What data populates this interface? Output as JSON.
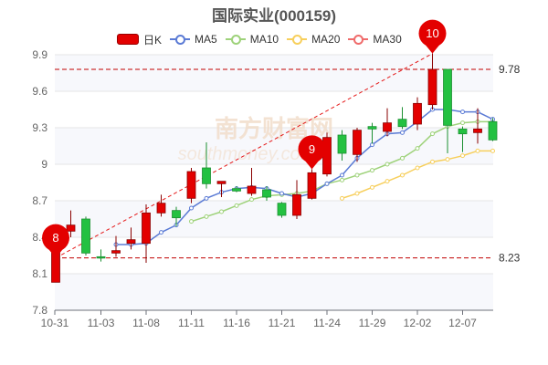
{
  "chart_data": {
    "type": "candlestick",
    "title": "国际实业(000159)",
    "legend": [
      "日K",
      "MA5",
      "MA10",
      "MA20",
      "MA30"
    ],
    "legend_position": "top",
    "colors": {
      "up": "#e30000",
      "down": "#23c141",
      "ma5": "#5b7bd5",
      "ma10": "#9ed27a",
      "ma20": "#f7cf5c",
      "ma30": "#ef6b6b",
      "grid": "#e6e6e6"
    },
    "y_range": [
      7.8,
      9.9
    ],
    "y_ticks": [
      "7.8",
      "8.1",
      "8.4",
      "8.7",
      "9",
      "9.3",
      "9.6",
      "9.9"
    ],
    "x_ticks": [
      "10-31",
      "11-03",
      "11-08",
      "11-11",
      "11-16",
      "11-21",
      "11-24",
      "11-29",
      "12-02",
      "12-07"
    ],
    "candles": [
      {
        "date": "10-31",
        "open": 8.03,
        "close": 8.39,
        "low": 8.03,
        "high": 8.42
      },
      {
        "date": "11-01",
        "open": 8.45,
        "close": 8.5,
        "low": 8.4,
        "high": 8.62
      },
      {
        "date": "11-02",
        "open": 8.55,
        "close": 8.27,
        "low": 8.25,
        "high": 8.57
      },
      {
        "date": "11-03",
        "open": 8.24,
        "close": 8.23,
        "low": 8.2,
        "high": 8.3
      },
      {
        "date": "11-04",
        "open": 8.27,
        "close": 8.29,
        "low": 8.24,
        "high": 8.41
      },
      {
        "date": "11-07",
        "open": 8.35,
        "close": 8.38,
        "low": 8.3,
        "high": 8.48
      },
      {
        "date": "11-08",
        "open": 8.35,
        "close": 8.6,
        "low": 8.19,
        "high": 8.67
      },
      {
        "date": "11-09",
        "open": 8.6,
        "close": 8.68,
        "low": 8.57,
        "high": 8.75
      },
      {
        "date": "11-10",
        "open": 8.62,
        "close": 8.56,
        "low": 8.49,
        "high": 8.65
      },
      {
        "date": "11-11",
        "open": 8.72,
        "close": 8.94,
        "low": 8.68,
        "high": 8.97
      },
      {
        "date": "11-14",
        "open": 8.97,
        "close": 8.84,
        "low": 8.8,
        "high": 9.18
      },
      {
        "date": "11-15",
        "open": 8.84,
        "close": 8.86,
        "low": 8.73,
        "high": 8.86
      },
      {
        "date": "11-16",
        "open": 8.8,
        "close": 8.78,
        "low": 8.77,
        "high": 8.82
      },
      {
        "date": "11-17",
        "open": 8.76,
        "close": 8.82,
        "low": 8.74,
        "high": 8.97
      },
      {
        "date": "11-18",
        "open": 8.79,
        "close": 8.73,
        "low": 8.7,
        "high": 8.82
      },
      {
        "date": "11-21",
        "open": 8.68,
        "close": 8.58,
        "low": 8.56,
        "high": 8.69
      },
      {
        "date": "11-22",
        "open": 8.58,
        "close": 8.75,
        "low": 8.55,
        "high": 8.87
      },
      {
        "date": "11-23",
        "open": 8.72,
        "close": 8.93,
        "low": 8.71,
        "high": 8.96
      },
      {
        "date": "11-24",
        "open": 8.92,
        "close": 9.22,
        "low": 8.9,
        "high": 9.26
      },
      {
        "date": "11-25",
        "open": 9.24,
        "close": 9.09,
        "low": 9.03,
        "high": 9.28
      },
      {
        "date": "11-28",
        "open": 9.08,
        "close": 9.28,
        "low": 9.02,
        "high": 9.3
      },
      {
        "date": "11-29",
        "open": 9.31,
        "close": 9.29,
        "low": 9.17,
        "high": 9.34
      },
      {
        "date": "11-30",
        "open": 9.27,
        "close": 9.34,
        "low": 9.23,
        "high": 9.46
      },
      {
        "date": "12-01",
        "open": 9.37,
        "close": 9.31,
        "low": 9.29,
        "high": 9.47
      },
      {
        "date": "12-02",
        "open": 9.33,
        "close": 9.5,
        "low": 9.28,
        "high": 9.55
      },
      {
        "date": "12-05",
        "open": 9.49,
        "close": 9.78,
        "low": 9.45,
        "high": 9.91
      },
      {
        "date": "12-06",
        "open": 9.78,
        "close": 9.32,
        "low": 9.09,
        "high": 9.78
      },
      {
        "date": "12-07",
        "open": 9.29,
        "close": 9.25,
        "low": 9.1,
        "high": 9.31
      },
      {
        "date": "12-08",
        "open": 9.26,
        "close": 9.29,
        "low": 9.17,
        "high": 9.46
      },
      {
        "date": "12-09",
        "open": 9.35,
        "close": 9.2,
        "low": 9.19,
        "high": 9.38
      }
    ],
    "ma5": [
      null,
      null,
      null,
      null,
      8.34,
      8.34,
      8.35,
      8.44,
      8.5,
      8.64,
      8.72,
      8.77,
      8.8,
      8.81,
      8.8,
      8.76,
      8.73,
      8.76,
      8.84,
      8.91,
      9.05,
      9.16,
      9.25,
      9.26,
      9.35,
      9.45,
      9.45,
      9.43,
      9.43,
      9.37
    ],
    "ma10": [
      null,
      null,
      null,
      null,
      null,
      null,
      null,
      null,
      null,
      8.53,
      8.57,
      8.61,
      8.66,
      8.71,
      8.74,
      8.75,
      8.76,
      8.78,
      8.84,
      8.87,
      8.91,
      8.95,
      9.0,
      9.05,
      9.13,
      9.25,
      9.31,
      9.34,
      9.35,
      9.35
    ],
    "ma20": [
      null,
      null,
      null,
      null,
      null,
      null,
      null,
      null,
      null,
      null,
      null,
      null,
      null,
      null,
      null,
      null,
      null,
      null,
      null,
      8.72,
      8.76,
      8.81,
      8.86,
      8.91,
      8.97,
      9.02,
      9.04,
      9.07,
      9.11,
      9.11
    ],
    "reference_lines": [
      {
        "label": "9.78",
        "value": 9.78
      },
      {
        "label": "8.23",
        "value": 8.23
      }
    ],
    "markers": [
      {
        "label": "8",
        "index": 0,
        "value": 8.23
      },
      {
        "label": "9",
        "index": 17,
        "value": 8.96
      },
      {
        "label": "10",
        "index": 25,
        "value": 9.91
      }
    ]
  }
}
